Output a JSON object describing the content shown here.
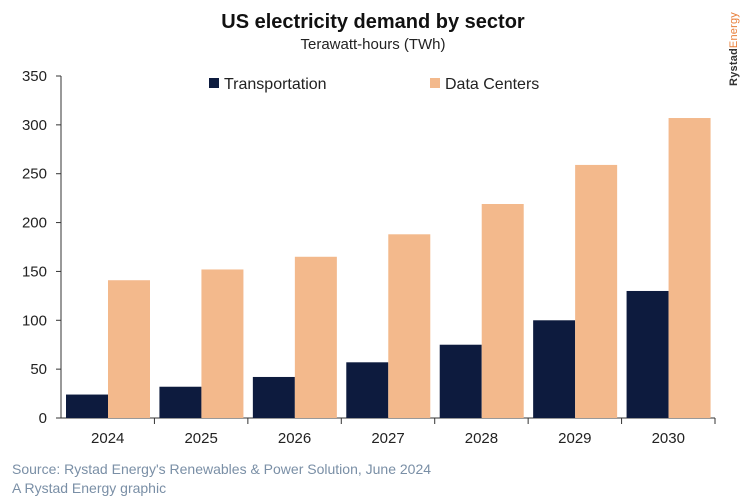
{
  "header": {
    "title": "US electricity demand by sector",
    "subtitle": "Terawatt-hours (TWh)"
  },
  "brand": {
    "part1": "Rystad",
    "part2": "Energy"
  },
  "footer": {
    "source": "Source: Rystad Energy's Renewables & Power Solution, June 2024",
    "credit": "A Rystad Energy graphic"
  },
  "colors": {
    "transportation": "#0d1b3e",
    "data_centers": "#f3b98c",
    "axis": "#333333",
    "footer": "#7a8fa6"
  },
  "chart_data": {
    "type": "bar",
    "title": "US electricity demand by sector",
    "subtitle": "Terawatt-hours (TWh)",
    "categories": [
      "2024",
      "2025",
      "2026",
      "2027",
      "2028",
      "2029",
      "2030"
    ],
    "series": [
      {
        "name": "Transportation",
        "color": "#0d1b3e",
        "values": [
          24,
          32,
          42,
          57,
          75,
          100,
          130
        ]
      },
      {
        "name": "Data Centers",
        "color": "#f3b98c",
        "values": [
          141,
          152,
          165,
          188,
          219,
          259,
          307
        ]
      }
    ],
    "ylim": [
      0,
      350
    ],
    "yticks": [
      0,
      50,
      100,
      150,
      200,
      250,
      300,
      350
    ],
    "grid": false,
    "legend": "top-center"
  }
}
